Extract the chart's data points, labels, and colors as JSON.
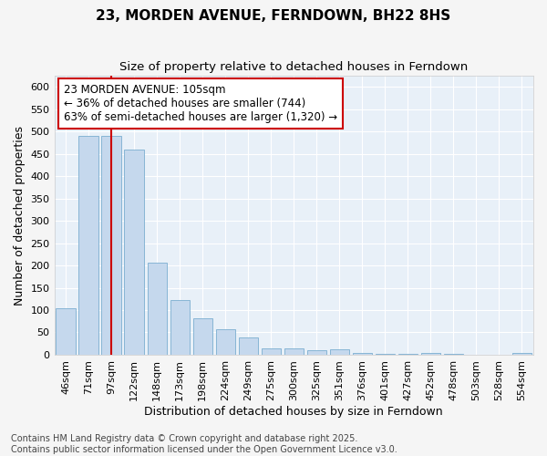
{
  "title": "23, MORDEN AVENUE, FERNDOWN, BH22 8HS",
  "subtitle": "Size of property relative to detached houses in Ferndown",
  "xlabel": "Distribution of detached houses by size in Ferndown",
  "ylabel": "Number of detached properties",
  "footer_line1": "Contains HM Land Registry data © Crown copyright and database right 2025.",
  "footer_line2": "Contains public sector information licensed under the Open Government Licence v3.0.",
  "categories": [
    "46sqm",
    "71sqm",
    "97sqm",
    "122sqm",
    "148sqm",
    "173sqm",
    "198sqm",
    "224sqm",
    "249sqm",
    "275sqm",
    "300sqm",
    "325sqm",
    "351sqm",
    "376sqm",
    "401sqm",
    "427sqm",
    "452sqm",
    "478sqm",
    "503sqm",
    "528sqm",
    "554sqm"
  ],
  "values": [
    105,
    490,
    490,
    460,
    207,
    122,
    82,
    57,
    38,
    14,
    14,
    10,
    12,
    3,
    1,
    1,
    5,
    1,
    0,
    0,
    4
  ],
  "bar_color": "#c5d8ed",
  "bar_edge_color": "#7aaed0",
  "vline_x": 2,
  "vline_color": "#cc0000",
  "annotation_title": "23 MORDEN AVENUE: 105sqm",
  "annotation_line1": "← 36% of detached houses are smaller (744)",
  "annotation_line2": "63% of semi-detached houses are larger (1,320) →",
  "annotation_box_color": "#ffffff",
  "annotation_border_color": "#cc0000",
  "ylim": [
    0,
    625
  ],
  "yticks": [
    0,
    50,
    100,
    150,
    200,
    250,
    300,
    350,
    400,
    450,
    500,
    550,
    600
  ],
  "fig_bg_color": "#f5f5f5",
  "plot_bg_color": "#e8f0f8",
  "grid_color": "#ffffff",
  "title_fontsize": 11,
  "subtitle_fontsize": 9.5,
  "axis_label_fontsize": 9,
  "tick_fontsize": 8,
  "footer_fontsize": 7,
  "annotation_fontsize": 8.5
}
